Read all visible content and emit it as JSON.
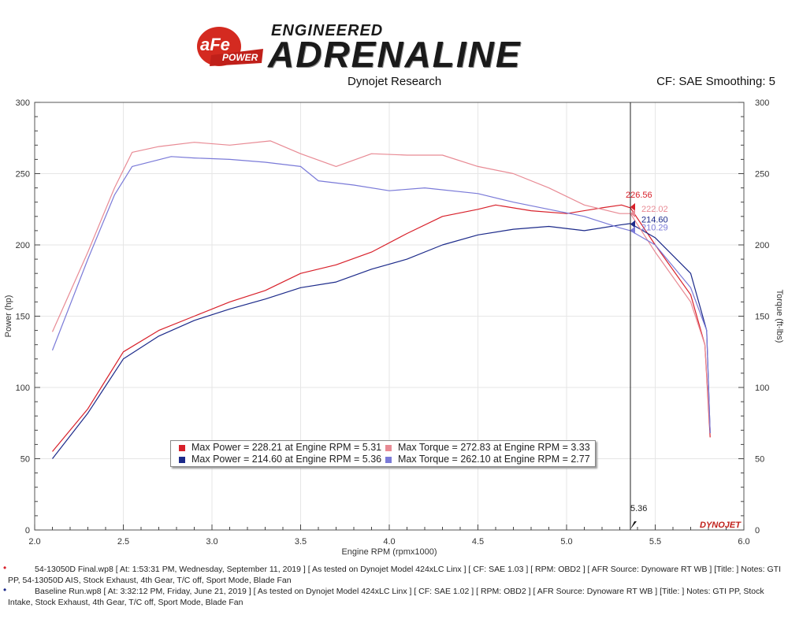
{
  "header": {
    "brand_badge": "aFe",
    "brand_power": "POWER",
    "tagline_top": "ENGINEERED",
    "tagline_main": "ADRENALINE",
    "subtitle": "Dynojet Research",
    "cf_note": "CF: SAE Smoothing: 5"
  },
  "colors": {
    "final_power": "#d8202a",
    "final_torque": "#e88a94",
    "baseline_power": "#1c2a8a",
    "baseline_torque": "#7a7ad8"
  },
  "chart_data": {
    "type": "line",
    "xlabel": "Engine RPM (rpmx1000)",
    "ylabel_left": "Power (hp)",
    "ylabel_right": "Torque (ft-lbs)",
    "xlim": [
      2.0,
      6.0
    ],
    "ylim": [
      0,
      300
    ],
    "x_ticks": [
      "2.0",
      "2.5",
      "3.0",
      "3.5",
      "4.0",
      "4.5",
      "5.0",
      "5.5",
      "6.0"
    ],
    "y_ticks": [
      "0",
      "50",
      "100",
      "150",
      "200",
      "250",
      "300"
    ],
    "grid": true,
    "marker_rpm": 5.36,
    "marker_label": "5.36",
    "watermark": "DYNOJET",
    "series": [
      {
        "name": "54-13050D Final.wp8 Power",
        "key": "final_power",
        "x": [
          2.1,
          2.3,
          2.5,
          2.7,
          2.9,
          3.1,
          3.3,
          3.5,
          3.7,
          3.9,
          4.1,
          4.3,
          4.5,
          4.6,
          4.8,
          5.0,
          5.2,
          5.31,
          5.36,
          5.5,
          5.7,
          5.78,
          5.81
        ],
        "y": [
          55,
          85,
          125,
          140,
          150,
          160,
          168,
          180,
          186,
          195,
          208,
          220,
          225,
          228,
          224,
          222,
          226,
          228,
          226,
          200,
          165,
          130,
          65
        ]
      },
      {
        "name": "Baseline Run.wp8 Power",
        "key": "baseline_power",
        "x": [
          2.1,
          2.3,
          2.5,
          2.7,
          2.9,
          3.1,
          3.3,
          3.5,
          3.7,
          3.9,
          4.1,
          4.3,
          4.5,
          4.7,
          4.9,
          5.1,
          5.3,
          5.36,
          5.5,
          5.7,
          5.79,
          5.81
        ],
        "y": [
          50,
          82,
          120,
          136,
          147,
          155,
          162,
          170,
          174,
          183,
          190,
          200,
          207,
          211,
          213,
          210,
          214,
          215,
          205,
          180,
          140,
          68
        ]
      },
      {
        "name": "54-13050D Final.wp8 Torque",
        "key": "final_torque",
        "x": [
          2.1,
          2.3,
          2.45,
          2.55,
          2.7,
          2.9,
          3.1,
          3.33,
          3.5,
          3.7,
          3.9,
          4.1,
          4.3,
          4.5,
          4.7,
          4.9,
          5.1,
          5.3,
          5.36,
          5.5,
          5.7,
          5.78,
          5.81
        ],
        "y": [
          139,
          195,
          240,
          265,
          269,
          272,
          270,
          273,
          264,
          255,
          264,
          263,
          263,
          255,
          250,
          240,
          228,
          222,
          222,
          195,
          160,
          130,
          70
        ]
      },
      {
        "name": "Baseline Run.wp8 Torque",
        "key": "baseline_torque",
        "x": [
          2.1,
          2.3,
          2.45,
          2.55,
          2.77,
          2.9,
          3.1,
          3.3,
          3.5,
          3.6,
          3.8,
          4.0,
          4.2,
          4.5,
          4.7,
          4.9,
          5.1,
          5.3,
          5.36,
          5.5,
          5.7,
          5.79,
          5.81
        ],
        "y": [
          126,
          190,
          235,
          255,
          262,
          261,
          260,
          258,
          255,
          245,
          242,
          238,
          240,
          236,
          230,
          225,
          220,
          212,
          210,
          200,
          170,
          140,
          68
        ]
      }
    ],
    "annotations": [
      {
        "text": "226.56",
        "x": 5.36,
        "y": 226.56,
        "key": "final_power"
      },
      {
        "text": "222.02",
        "x": 5.36,
        "y": 222.02,
        "key": "final_torque"
      },
      {
        "text": "214.60",
        "x": 5.36,
        "y": 214.6,
        "key": "baseline_power"
      },
      {
        "text": "210.29",
        "x": 5.36,
        "y": 210.29,
        "key": "baseline_torque"
      }
    ],
    "legend": [
      {
        "text": "Max Power = 228.21 at Engine RPM = 5.31",
        "key": "final_power"
      },
      {
        "text": "Max Torque = 272.83 at Engine RPM = 3.33",
        "key": "final_torque"
      },
      {
        "text": "Max Power = 214.60 at Engine RPM = 5.36",
        "key": "baseline_power"
      },
      {
        "text": "Max Torque = 262.10 at Engine RPM = 2.77",
        "key": "baseline_torque"
      }
    ]
  },
  "footnotes": [
    {
      "text": "54-13050D Final.wp8 [ At: 1:53:31 PM, Wednesday, September 11, 2019 ] [ As tested on Dynojet Model 424xLC Linx ] [ CF: SAE 1.03 ] [ RPM: OBD2 ] [ AFR Source: Dynoware RT WB ] [Title: ]  Notes: GTI PP, 54-13050D AIS, Stock Exhaust, 4th Gear, T/C off, Sport Mode, Blade Fan",
      "key": "final_power"
    },
    {
      "text": "Baseline Run.wp8 [ At: 3:32:12 PM, Friday, June 21, 2019 ] [ As tested on Dynojet Model 424xLC Linx ] [ CF: SAE 1.02 ] [ RPM: OBD2 ] [ AFR Source: Dynoware RT WB ] [Title: ]  Notes: GTI PP, Stock Intake, Stock Exhaust, 4th Gear, T/C off, Sport Mode, Blade Fan",
      "key": "baseline_power"
    }
  ]
}
